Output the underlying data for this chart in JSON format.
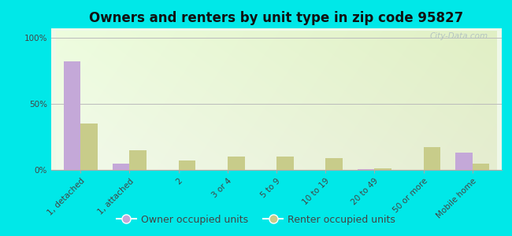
{
  "title": "Owners and renters by unit type in zip code 95827",
  "categories": [
    "1, detached",
    "1, attached",
    "2",
    "3 or 4",
    "5 to 9",
    "10 to 19",
    "20 to 49",
    "50 or more",
    "Mobile home"
  ],
  "owner_values": [
    82,
    5,
    0,
    0,
    0,
    0,
    0.5,
    0,
    13
  ],
  "renter_values": [
    35,
    15,
    7,
    10,
    10,
    9,
    1,
    17,
    5
  ],
  "owner_color": "#c4a8d8",
  "renter_color": "#c8cc8a",
  "outer_bg": "#00e8e8",
  "plot_bg_colors": [
    "#f0f8e8",
    "#ddeebb"
  ],
  "ylabel_ticks": [
    0,
    50,
    100
  ],
  "ylabel_labels": [
    "0%",
    "50%",
    "100%"
  ],
  "legend_owner": "Owner occupied units",
  "legend_renter": "Renter occupied units",
  "watermark": "City-Data.com",
  "title_fontsize": 12,
  "tick_fontsize": 7.5,
  "legend_fontsize": 9,
  "bar_width": 0.35
}
